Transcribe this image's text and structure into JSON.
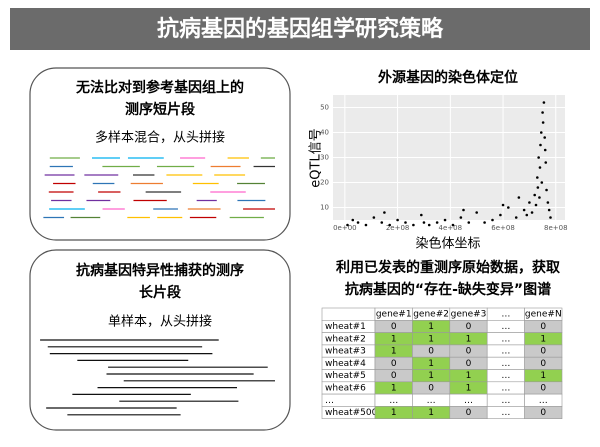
{
  "header": {
    "title": "抗病基因的基因组学研究策略"
  },
  "short_reads_box": {
    "title_lines": [
      "无法比对到参考基因组上的",
      "测序短片段"
    ],
    "subtitle": "多样本混合，从头拼接"
  },
  "long_reads_box": {
    "title_lines": [
      "抗病基因特异性捕获的测序",
      "长片段"
    ],
    "subtitle": "单样本，从头拼接"
  },
  "chart": {
    "type": "scatter",
    "title": "外源基因的染色体定位",
    "x_label": "染色体坐标",
    "y_label": "eQTL信号",
    "xlim": [
      -45000000,
      835000000
    ],
    "ylim": [
      5,
      55
    ],
    "xticks": [
      {
        "value": 0,
        "label": "0e+00"
      },
      {
        "value": 200000000,
        "label": "2e+08"
      },
      {
        "value": 400000000,
        "label": "4e+08"
      },
      {
        "value": 600000000,
        "label": "6e+08"
      },
      {
        "value": 800000000,
        "label": "8e+08"
      }
    ],
    "yticks": [
      10,
      20,
      30,
      40,
      50
    ],
    "grid": true,
    "color": "#000000",
    "x": [
      10000000.0,
      30000000.0,
      50000000.0,
      80000000.0,
      110000000.0,
      140000000.0,
      170000000.0,
      200000000.0,
      230000000.0,
      260000000.0,
      290000000.0,
      320000000.0,
      350000000.0,
      380000000.0,
      410000000.0,
      440000000.0,
      470000000.0,
      500000000.0,
      530000000.0,
      560000000.0,
      590000000.0,
      620000000.0,
      650000000.0,
      680000000.0,
      700000000.0,
      710000000.0,
      720000000.0,
      725000000.0,
      730000000.0,
      732000000.0,
      735000000.0,
      738000000.0,
      740000000.0,
      742000000.0,
      745000000.0,
      747000000.0,
      750000000.0,
      752000000.0,
      755000000.0,
      758000000.0,
      760000000.0,
      762000000.0,
      765000000.0,
      770000000.0,
      775000000.0,
      780000000.0,
      150000000.0,
      300000000.0,
      450000000.0,
      600000000.0,
      660000000.0,
      690000000.0
    ],
    "y": [
      3,
      5,
      4,
      3,
      6,
      4,
      3,
      5,
      4,
      3,
      7,
      3,
      4,
      5,
      3,
      6,
      4,
      8,
      4,
      5,
      7,
      10,
      6,
      9,
      12,
      8,
      15,
      11,
      22,
      18,
      30,
      14,
      26,
      35,
      40,
      20,
      48,
      44,
      52,
      38,
      33,
      28,
      17,
      12,
      9,
      6,
      8,
      4,
      9,
      11,
      14,
      7
    ]
  },
  "pav_caption": {
    "lines": [
      "利用已发表的重测序原始数据，获取",
      "抗病基因的“存在-缺失变异”图谱"
    ]
  },
  "table": {
    "header": [
      "gene#1",
      "gene#2",
      "gene#3",
      "…",
      "gene#N"
    ],
    "rows": [
      [
        "wheat#1",
        "0",
        "1",
        "0",
        "…",
        "0"
      ],
      [
        "wheat#2",
        "1",
        "1",
        "1",
        "…",
        "1"
      ],
      [
        "wheat#3",
        "1",
        "0",
        "0",
        "…",
        "0"
      ],
      [
        "wheat#4",
        "0",
        "1",
        "0",
        "…",
        "0"
      ],
      [
        "wheat#5",
        "0",
        "1",
        "1",
        "…",
        "1"
      ],
      [
        "wheat#6",
        "1",
        "0",
        "1",
        "…",
        "0"
      ],
      [
        "…",
        "…",
        "…",
        "…",
        "…",
        "…"
      ],
      [
        "wheat#500",
        "1",
        "1",
        "0",
        "…",
        "0"
      ]
    ]
  }
}
